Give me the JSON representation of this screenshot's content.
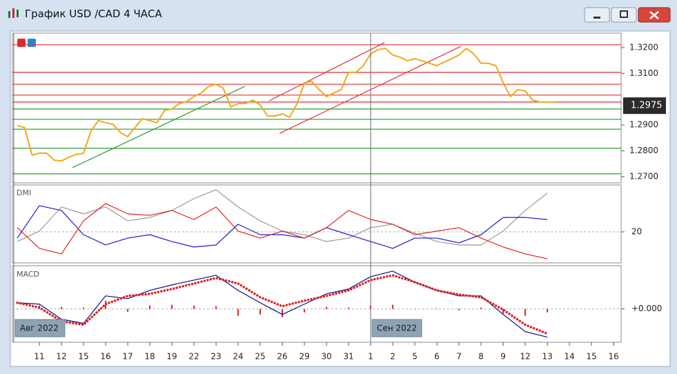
{
  "window": {
    "title": "График USD /CAD  4 ЧАСА"
  },
  "chart_data": [
    {
      "type": "line",
      "x": [
        -1,
        -0.67,
        -0.33,
        0,
        0.33,
        0.67,
        1,
        1.33,
        1.67,
        2,
        2.33,
        2.67,
        3,
        3.33,
        3.67,
        4,
        4.33,
        4.67,
        5,
        5.33,
        5.67,
        6,
        6.33,
        6.67,
        7,
        7.33,
        7.67,
        8,
        8.33,
        8.67,
        9,
        9.33,
        9.67,
        10,
        10.33,
        10.67,
        11,
        11.33,
        11.67,
        12,
        12.33,
        12.67,
        13,
        13.33,
        13.67,
        14,
        14.33,
        14.67,
        15,
        15.33,
        15.67,
        16,
        16.33,
        16.67,
        17,
        17.33,
        17.67,
        18,
        18.33,
        18.67,
        19,
        19.33,
        19.67,
        20,
        20.33,
        20.67,
        21,
        21.33,
        21.67,
        22,
        22.33,
        22.67,
        23,
        23.33
      ],
      "series": [
        {
          "color": "#f0a818",
          "values": [
            1.2898,
            1.289,
            1.2783,
            1.2791,
            1.2791,
            1.2764,
            1.2761,
            1.2775,
            1.2786,
            1.2791,
            1.2876,
            1.2917,
            1.2909,
            1.2903,
            1.2871,
            1.2855,
            1.289,
            1.2925,
            1.2917,
            1.2909,
            1.2957,
            1.2962,
            1.2983,
            1.2991,
            1.301,
            1.3024,
            1.305,
            1.3058,
            1.3042,
            1.297,
            1.2983,
            1.2983,
            1.2997,
            1.2978,
            1.2935,
            1.2935,
            1.2943,
            1.293,
            1.2983,
            1.3064,
            1.3069,
            1.3037,
            1.301,
            1.3024,
            1.3037,
            1.3104,
            1.3104,
            1.313,
            1.3176,
            1.3192,
            1.3197,
            1.3171,
            1.3163,
            1.3149,
            1.3157,
            1.3149,
            1.3139,
            1.313,
            1.3144,
            1.3157,
            1.3171,
            1.3197,
            1.3176,
            1.3139,
            1.3139,
            1.313,
            1.3064,
            1.301,
            1.3037,
            1.3032,
            1.2997,
            1.2989,
            1.2989,
            1.2989
          ]
        }
      ],
      "xlim": [
        -1.22,
        26.34
      ],
      "ylim": [
        1.2676,
        1.3256
      ],
      "yticks": [
        {
          "value": 1.27,
          "label": "1.2700"
        },
        {
          "value": 1.28,
          "label": "1.2800"
        },
        {
          "value": 1.29,
          "label": "1.2900"
        },
        {
          "value": 1.31,
          "label": "1.3100"
        },
        {
          "value": 1.32,
          "label": "1.3200"
        }
      ],
      "last_price": 1.2975,
      "horizontal_lines": [
        {
          "value": 1.3211,
          "color": "#e03030"
        },
        {
          "value": 1.3104,
          "color": "#e03030"
        },
        {
          "value": 1.3058,
          "color": "#e03030"
        },
        {
          "value": 1.3016,
          "color": "#e03030"
        },
        {
          "value": 1.2989,
          "color": "#e03030"
        },
        {
          "value": 1.2962,
          "color": "#2a9a2a"
        },
        {
          "value": 1.2922,
          "color": "#2a9a2a"
        },
        {
          "value": 1.2884,
          "color": "#2a9a2a"
        },
        {
          "value": 1.281,
          "color": "#2a9a2a"
        },
        {
          "value": 1.2711,
          "color": "#2a9a2a"
        }
      ],
      "trendlines": [
        {
          "x": [
            1.5,
            9.31
          ],
          "y": [
            1.2735,
            1.305
          ],
          "color": "#2a9a2a"
        },
        {
          "x": [
            10.41,
            15.63
          ],
          "y": [
            1.2994,
            1.3219
          ],
          "color": "#e03030"
        },
        {
          "x": [
            10.88,
            19.09
          ],
          "y": [
            1.2868,
            1.3205
          ],
          "color": "#e03030"
        }
      ]
    },
    {
      "type": "line",
      "title": "DMI",
      "x": [
        -1,
        0,
        1,
        2,
        3,
        4,
        5,
        6,
        7,
        8,
        9,
        10,
        11,
        12,
        13,
        14,
        15,
        16,
        17,
        18,
        19,
        20,
        21,
        22,
        23
      ],
      "series": [
        {
          "color": "#999999",
          "values": [
            14.9,
            20.4,
            33.1,
            29.5,
            33.1,
            25.8,
            27.6,
            31.3,
            37.5,
            42.2,
            33.1,
            25.8,
            20.4,
            18.5,
            14.9,
            16.7,
            22.2,
            24,
            19.3,
            14.9,
            13.1,
            13.1,
            20.4,
            31.3,
            40.4
          ]
        },
        {
          "color": "#1a1acc",
          "values": [
            16.7,
            33.8,
            31.3,
            18.5,
            13.1,
            16.7,
            18.5,
            14.9,
            12,
            13.1,
            24,
            18.5,
            18.5,
            16.7,
            22.2,
            18.5,
            14.9,
            11.3,
            16.7,
            16.7,
            14.2,
            18.5,
            27.6,
            27.6,
            26.5
          ]
        },
        {
          "color": "#e02020",
          "values": [
            22.2,
            11.3,
            8.4,
            25.8,
            34.9,
            29.5,
            28.7,
            31.3,
            26.5,
            33.1,
            20.4,
            16.7,
            20.4,
            16.7,
            22.2,
            31.3,
            26.5,
            24,
            18.5,
            20.4,
            22.2,
            16.7,
            12,
            8.4,
            5.8
          ]
        }
      ],
      "xlim": [
        -1.22,
        26.34
      ],
      "ylim": [
        4,
        44
      ],
      "yticks": [
        20
      ]
    },
    {
      "type": "line",
      "title": "MACD",
      "x": [
        -1,
        0,
        1,
        2,
        3,
        4,
        5,
        6,
        7,
        8,
        9,
        10,
        11,
        12,
        13,
        14,
        15,
        16,
        17,
        18,
        19,
        20,
        21,
        22,
        23
      ],
      "series": [
        {
          "type": "bar",
          "color": "#e02020",
          "values": [
            0,
            0.0002,
            0.00012,
            8e-05,
            0.00048,
            -0.00016,
            0.0002,
            0.00024,
            0.0002,
            0.00016,
            -0.0004,
            -0.00032,
            -0.00048,
            -0.0002,
            0.00012,
            8e-05,
            0.0002,
            0.00024,
            0,
            0,
            -8e-05,
            8e-05,
            -0.00028,
            -0.0004,
            -0.0002
          ]
        },
        {
          "color": "#0a0a80",
          "values": [
            0.00036,
            0.00028,
            -0.0006,
            -0.00084,
            0.00076,
            0.0006,
            0.00108,
            0.0014,
            0.00168,
            0.00196,
            0.00108,
            0.00036,
            -0.00032,
            0.00028,
            0.00088,
            0.00116,
            0.00188,
            0.0022,
            0.00156,
            0.00108,
            0.00076,
            0.00076,
            -0.00032,
            -0.00132,
            -0.00164
          ]
        },
        {
          "color": "#e02020",
          "style": "dotted",
          "values": [
            0.00036,
            8e-05,
            -0.00072,
            -0.00092,
            0.00028,
            0.00076,
            0.00088,
            0.00116,
            0.00148,
            0.0018,
            0.00148,
            0.00068,
            0.00016,
            0.00048,
            0.00076,
            0.00108,
            0.00168,
            0.00196,
            0.00156,
            0.00108,
            0.00084,
            0.00068,
            -4e-05,
            -0.00092,
            -0.00144
          ]
        }
      ],
      "xlim": [
        -1.22,
        26.34
      ],
      "ylim": [
        -0.0019,
        0.0024
      ],
      "yticks": [
        {
          "value": 0,
          "label": "+0.000"
        }
      ],
      "xticks": [
        {
          "value": 0,
          "label": "11"
        },
        {
          "value": 1,
          "label": "12"
        },
        {
          "value": 2,
          "label": "15"
        },
        {
          "value": 3,
          "label": "16"
        },
        {
          "value": 4,
          "label": "17"
        },
        {
          "value": 5,
          "label": "18"
        },
        {
          "value": 6,
          "label": "19"
        },
        {
          "value": 7,
          "label": "22"
        },
        {
          "value": 8,
          "label": "23"
        },
        {
          "value": 9,
          "label": "24"
        },
        {
          "value": 10,
          "label": "25"
        },
        {
          "value": 11,
          "label": "26"
        },
        {
          "value": 12,
          "label": "29"
        },
        {
          "value": 13,
          "label": "30"
        },
        {
          "value": 14,
          "label": "31"
        },
        {
          "value": 15,
          "label": "1"
        },
        {
          "value": 16,
          "label": "2"
        },
        {
          "value": 17,
          "label": "5"
        },
        {
          "value": 18,
          "label": "6"
        },
        {
          "value": 19,
          "label": "7"
        },
        {
          "value": 20,
          "label": "8"
        },
        {
          "value": 21,
          "label": "9"
        },
        {
          "value": 22,
          "label": "12"
        },
        {
          "value": 23,
          "label": "13"
        },
        {
          "value": 24,
          "label": "14"
        },
        {
          "value": 25,
          "label": "15"
        },
        {
          "value": 26,
          "label": "16"
        }
      ],
      "period_labels": [
        {
          "value": -1.16,
          "label": "Авг 2022"
        },
        {
          "value": 15,
          "label": "Сен 2022"
        }
      ]
    }
  ]
}
